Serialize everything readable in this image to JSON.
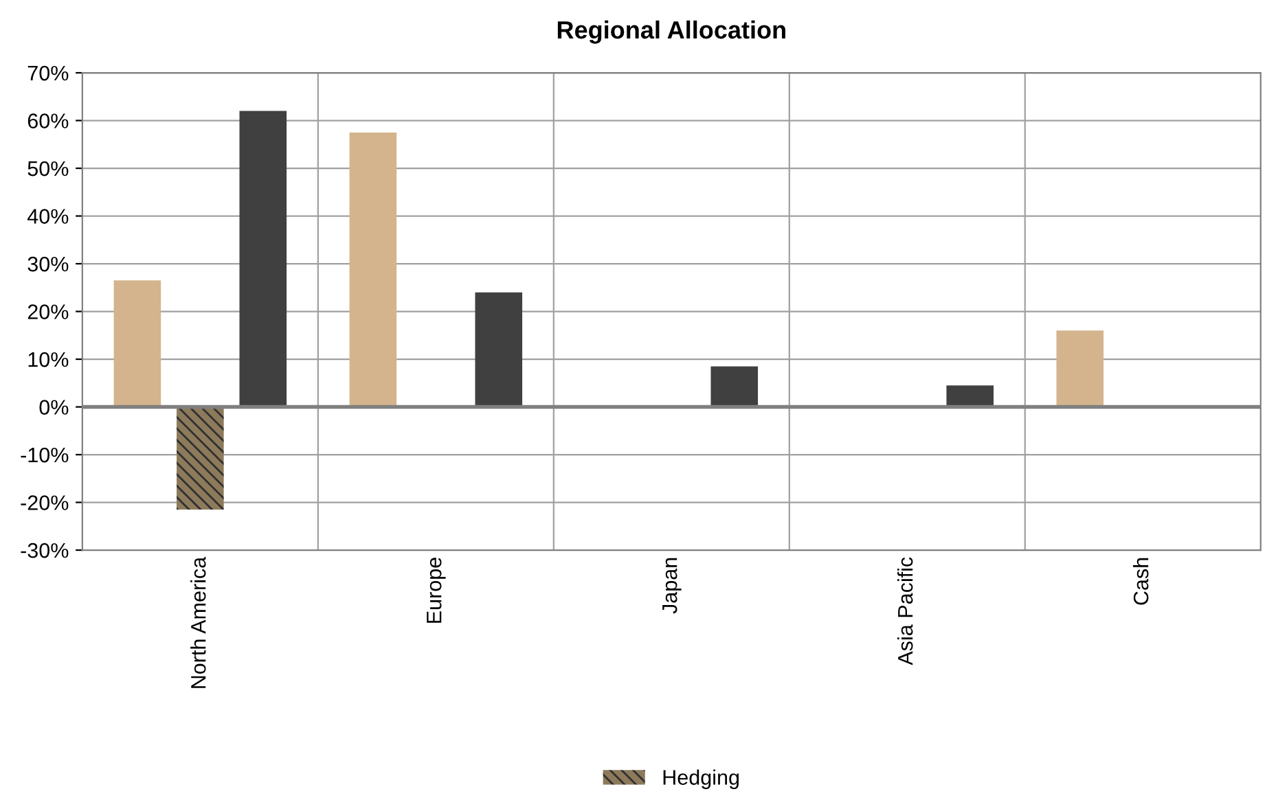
{
  "chart_data": {
    "type": "bar",
    "title": "Regional Allocation",
    "categories": [
      "North America",
      "Europe",
      "Japan",
      "Asia Pacific",
      "Cash"
    ],
    "series": [
      {
        "color": "#d4b48c",
        "values": [
          26.5,
          57.5,
          0,
          0,
          16
        ]
      },
      {
        "name": "Hedging",
        "color": "#8c7a5b",
        "values": [
          -21.5,
          0,
          0,
          0,
          0
        ]
      },
      {
        "color": "#404040",
        "values": [
          62,
          24,
          8.5,
          4.5,
          0
        ]
      }
    ],
    "ylim": [
      -30,
      70
    ],
    "yticks": [
      {
        "value": -30,
        "label": "-30%"
      },
      {
        "value": -20,
        "label": "-20%"
      },
      {
        "value": -10,
        "label": "-10%"
      },
      {
        "value": 0,
        "label": "0%"
      },
      {
        "value": 10,
        "label": "10%"
      },
      {
        "value": 20,
        "label": "20%"
      },
      {
        "value": 30,
        "label": "30%"
      },
      {
        "value": 40,
        "label": "40%"
      },
      {
        "value": 50,
        "label": "50%"
      },
      {
        "value": 60,
        "label": "60%"
      },
      {
        "value": 70,
        "label": "70%"
      }
    ],
    "grid": true,
    "legend": "bottom"
  }
}
